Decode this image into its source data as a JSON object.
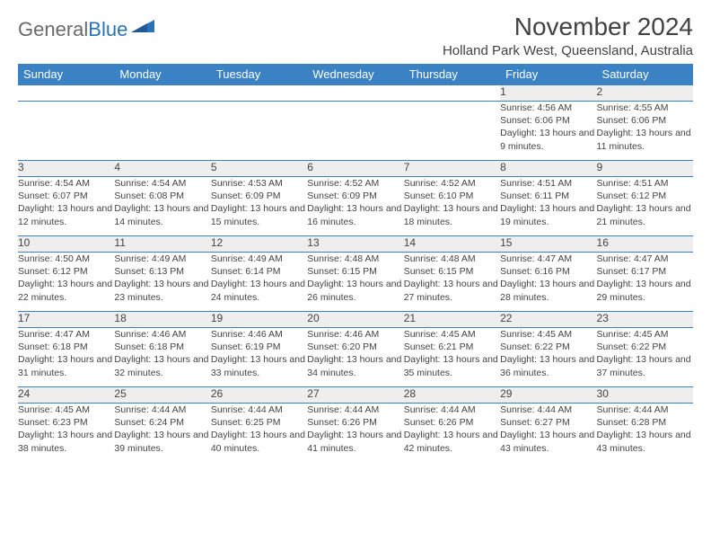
{
  "logo": {
    "text1": "General",
    "text2": "Blue"
  },
  "title": "November 2024",
  "location": "Holland Park West, Queensland, Australia",
  "colors": {
    "header_bg": "#3b82c4",
    "header_text": "#ffffff",
    "daynum_bg": "#eeeeee",
    "border": "#3b82c4",
    "text": "#444444",
    "title_text": "#424242",
    "logo_gray": "#6a6a6a",
    "logo_blue": "#2a73b8"
  },
  "day_headers": [
    "Sunday",
    "Monday",
    "Tuesday",
    "Wednesday",
    "Thursday",
    "Friday",
    "Saturday"
  ],
  "weeks": [
    [
      null,
      null,
      null,
      null,
      null,
      {
        "n": "1",
        "sr": "4:56 AM",
        "ss": "6:06 PM",
        "dl": "13 hours and 9 minutes."
      },
      {
        "n": "2",
        "sr": "4:55 AM",
        "ss": "6:06 PM",
        "dl": "13 hours and 11 minutes."
      }
    ],
    [
      {
        "n": "3",
        "sr": "4:54 AM",
        "ss": "6:07 PM",
        "dl": "13 hours and 12 minutes."
      },
      {
        "n": "4",
        "sr": "4:54 AM",
        "ss": "6:08 PM",
        "dl": "13 hours and 14 minutes."
      },
      {
        "n": "5",
        "sr": "4:53 AM",
        "ss": "6:09 PM",
        "dl": "13 hours and 15 minutes."
      },
      {
        "n": "6",
        "sr": "4:52 AM",
        "ss": "6:09 PM",
        "dl": "13 hours and 16 minutes."
      },
      {
        "n": "7",
        "sr": "4:52 AM",
        "ss": "6:10 PM",
        "dl": "13 hours and 18 minutes."
      },
      {
        "n": "8",
        "sr": "4:51 AM",
        "ss": "6:11 PM",
        "dl": "13 hours and 19 minutes."
      },
      {
        "n": "9",
        "sr": "4:51 AM",
        "ss": "6:12 PM",
        "dl": "13 hours and 21 minutes."
      }
    ],
    [
      {
        "n": "10",
        "sr": "4:50 AM",
        "ss": "6:12 PM",
        "dl": "13 hours and 22 minutes."
      },
      {
        "n": "11",
        "sr": "4:49 AM",
        "ss": "6:13 PM",
        "dl": "13 hours and 23 minutes."
      },
      {
        "n": "12",
        "sr": "4:49 AM",
        "ss": "6:14 PM",
        "dl": "13 hours and 24 minutes."
      },
      {
        "n": "13",
        "sr": "4:48 AM",
        "ss": "6:15 PM",
        "dl": "13 hours and 26 minutes."
      },
      {
        "n": "14",
        "sr": "4:48 AM",
        "ss": "6:15 PM",
        "dl": "13 hours and 27 minutes."
      },
      {
        "n": "15",
        "sr": "4:47 AM",
        "ss": "6:16 PM",
        "dl": "13 hours and 28 minutes."
      },
      {
        "n": "16",
        "sr": "4:47 AM",
        "ss": "6:17 PM",
        "dl": "13 hours and 29 minutes."
      }
    ],
    [
      {
        "n": "17",
        "sr": "4:47 AM",
        "ss": "6:18 PM",
        "dl": "13 hours and 31 minutes."
      },
      {
        "n": "18",
        "sr": "4:46 AM",
        "ss": "6:18 PM",
        "dl": "13 hours and 32 minutes."
      },
      {
        "n": "19",
        "sr": "4:46 AM",
        "ss": "6:19 PM",
        "dl": "13 hours and 33 minutes."
      },
      {
        "n": "20",
        "sr": "4:46 AM",
        "ss": "6:20 PM",
        "dl": "13 hours and 34 minutes."
      },
      {
        "n": "21",
        "sr": "4:45 AM",
        "ss": "6:21 PM",
        "dl": "13 hours and 35 minutes."
      },
      {
        "n": "22",
        "sr": "4:45 AM",
        "ss": "6:22 PM",
        "dl": "13 hours and 36 minutes."
      },
      {
        "n": "23",
        "sr": "4:45 AM",
        "ss": "6:22 PM",
        "dl": "13 hours and 37 minutes."
      }
    ],
    [
      {
        "n": "24",
        "sr": "4:45 AM",
        "ss": "6:23 PM",
        "dl": "13 hours and 38 minutes."
      },
      {
        "n": "25",
        "sr": "4:44 AM",
        "ss": "6:24 PM",
        "dl": "13 hours and 39 minutes."
      },
      {
        "n": "26",
        "sr": "4:44 AM",
        "ss": "6:25 PM",
        "dl": "13 hours and 40 minutes."
      },
      {
        "n": "27",
        "sr": "4:44 AM",
        "ss": "6:26 PM",
        "dl": "13 hours and 41 minutes."
      },
      {
        "n": "28",
        "sr": "4:44 AM",
        "ss": "6:26 PM",
        "dl": "13 hours and 42 minutes."
      },
      {
        "n": "29",
        "sr": "4:44 AM",
        "ss": "6:27 PM",
        "dl": "13 hours and 43 minutes."
      },
      {
        "n": "30",
        "sr": "4:44 AM",
        "ss": "6:28 PM",
        "dl": "13 hours and 43 minutes."
      }
    ]
  ],
  "labels": {
    "sunrise": "Sunrise: ",
    "sunset": "Sunset: ",
    "daylight": "Daylight: "
  }
}
